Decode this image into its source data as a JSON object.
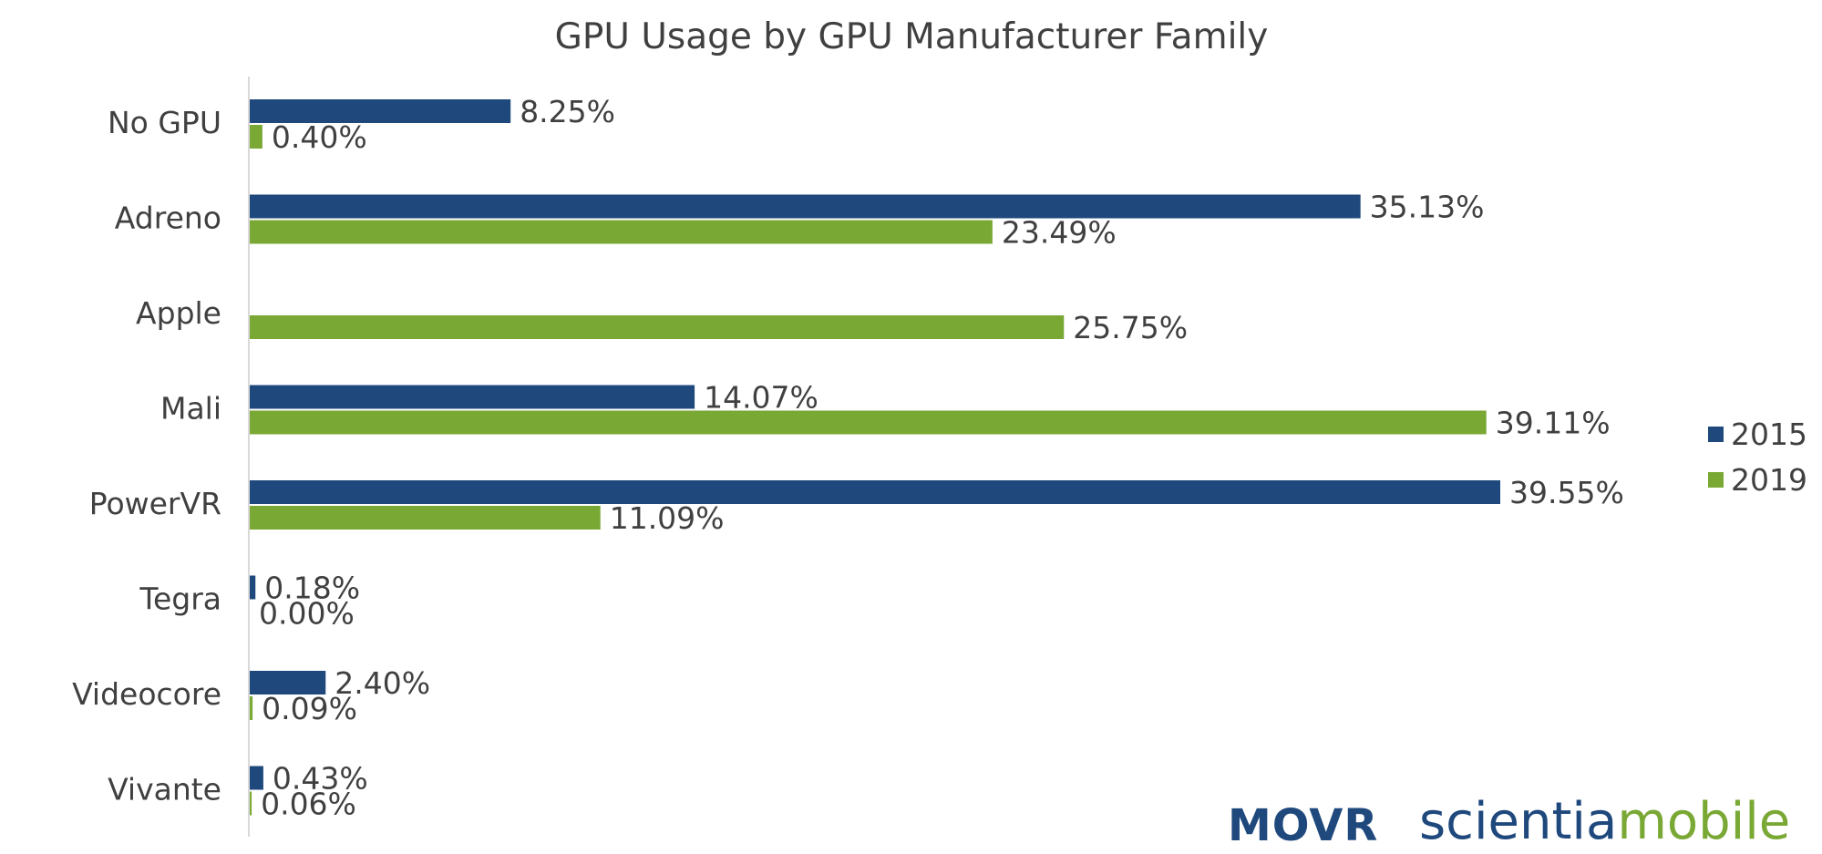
{
  "chart_data": {
    "type": "bar",
    "orientation": "horizontal",
    "title": "GPU Usage by GPU Manufacturer Family",
    "categories": [
      "No GPU",
      "Adreno",
      "Apple",
      "Mali",
      "PowerVR",
      "Tegra",
      "Videocore",
      "Vivante"
    ],
    "series": [
      {
        "name": "2015",
        "color": "#1f497d",
        "values": [
          8.25,
          35.13,
          null,
          14.07,
          39.55,
          0.18,
          2.4,
          0.43
        ],
        "labels": [
          "8.25%",
          "35.13%",
          "",
          "14.07%",
          "39.55%",
          "0.18%",
          "2.40%",
          "0.43%"
        ]
      },
      {
        "name": "2019",
        "color": "#7aa835",
        "values": [
          0.4,
          23.49,
          25.75,
          39.11,
          11.09,
          0.0,
          0.09,
          0.06
        ],
        "labels": [
          "0.40%",
          "23.49%",
          "25.75%",
          "39.11%",
          "11.09%",
          "0.00%",
          "0.09%",
          "0.06%"
        ]
      }
    ],
    "xlim": [
      0,
      39.55
    ],
    "grid": false,
    "legend_position": "right"
  },
  "branding": {
    "movr": "MOVR",
    "scientia_part1": "scientia",
    "scientia_part2": "mobile"
  }
}
